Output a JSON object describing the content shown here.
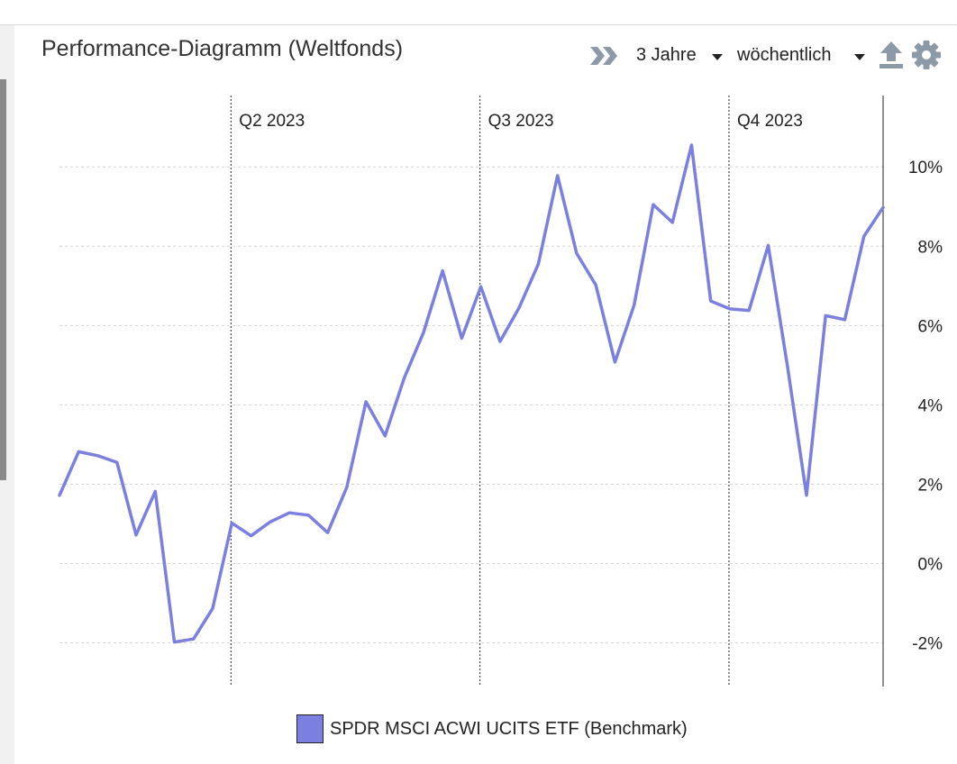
{
  "title": "Performance-Diagramm (Weltfonds)",
  "controls": {
    "period_label": "3 Jahre",
    "interval_label": "wöchentlich",
    "fast_forward_icon": "double-chevron-right-icon",
    "export_icon": "upload-icon",
    "settings_icon": "gear-icon",
    "icon_color": "#8c9aa8"
  },
  "chart_data": {
    "type": "line",
    "title": "Performance-Diagramm (Weltfonds)",
    "xlabel": "",
    "ylabel": "",
    "x_tick_labels": [
      "Q2 2023",
      "Q3 2023",
      "Q4 2023"
    ],
    "quarter_marker_index": [
      9,
      22,
      35
    ],
    "y_ticks": [
      -2,
      0,
      2,
      4,
      6,
      8,
      10
    ],
    "y_tick_labels": [
      "-2%",
      "0%",
      "2%",
      "4%",
      "6%",
      "8%",
      "10%"
    ],
    "ylim": [
      -3.1,
      11.8
    ],
    "grid": true,
    "legend_position": "bottom-center",
    "series": [
      {
        "name": "SPDR MSCI ACWI UCITS ETF (Benchmark)",
        "color": "#7b7fdf",
        "values": [
          1.72,
          2.82,
          2.72,
          2.55,
          0.72,
          1.82,
          -1.98,
          -1.9,
          -1.13,
          1.02,
          0.7,
          1.05,
          1.28,
          1.22,
          0.78,
          1.92,
          4.08,
          3.22,
          4.68,
          5.82,
          7.38,
          5.68,
          6.98,
          5.6,
          6.45,
          7.55,
          9.78,
          7.82,
          7.02,
          5.08,
          6.52,
          9.05,
          8.6,
          10.55,
          6.62,
          6.42,
          6.38,
          8.02,
          5.0,
          1.72,
          6.25,
          6.15,
          8.25,
          8.98
        ]
      }
    ]
  },
  "legend": {
    "label": "SPDR MSCI ACWI UCITS ETF (Benchmark)",
    "color": "#7b7fdf"
  }
}
